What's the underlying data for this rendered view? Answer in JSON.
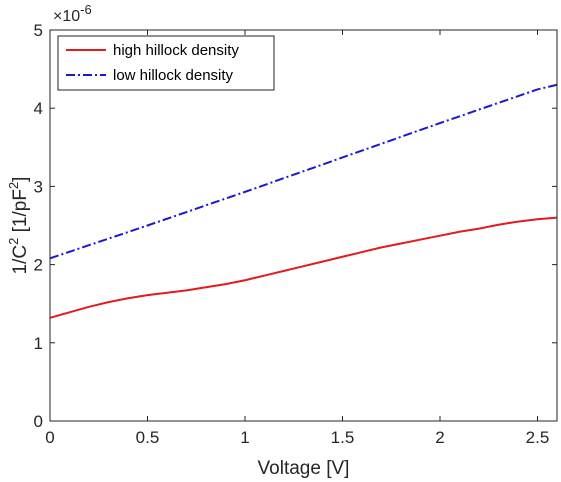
{
  "chart_data": {
    "type": "line",
    "xlabel": "Voltage [V]",
    "ylabel_parts": {
      "a": "1/C",
      "a_sup": "2",
      "b": " [1/pF",
      "b_sup": "2",
      "c": "]"
    },
    "y_multiplier": {
      "base": "×10",
      "exp": "-6"
    },
    "xlim": [
      0,
      2.6
    ],
    "ylim": [
      0,
      5
    ],
    "x_ticks": [
      0,
      0.5,
      1,
      1.5,
      2,
      2.5
    ],
    "x_tick_labels": [
      "0",
      "0.5",
      "1",
      "1.5",
      "2",
      "2.5"
    ],
    "y_ticks": [
      0,
      1,
      2,
      3,
      4,
      5
    ],
    "y_tick_labels": [
      "0",
      "1",
      "2",
      "3",
      "4",
      "5"
    ],
    "grid": false,
    "legend_position": "top-left",
    "series": [
      {
        "name": "high hillock density",
        "color": "#e41a1c",
        "style": "solid",
        "x": [
          0,
          0.1,
          0.2,
          0.3,
          0.4,
          0.5,
          0.6,
          0.7,
          0.8,
          0.9,
          1.0,
          1.1,
          1.2,
          1.3,
          1.4,
          1.5,
          1.6,
          1.7,
          1.8,
          1.9,
          2.0,
          2.1,
          2.2,
          2.3,
          2.4,
          2.5,
          2.6
        ],
        "y": [
          1.32,
          1.39,
          1.46,
          1.52,
          1.57,
          1.61,
          1.64,
          1.67,
          1.71,
          1.75,
          1.8,
          1.86,
          1.92,
          1.98,
          2.04,
          2.1,
          2.16,
          2.22,
          2.27,
          2.32,
          2.37,
          2.42,
          2.46,
          2.51,
          2.55,
          2.58,
          2.6
        ]
      },
      {
        "name": "low hillock density",
        "color": "#1a1acd",
        "style": "dashdot",
        "x": [
          0,
          0.5,
          1.0,
          1.5,
          2.0,
          2.5,
          2.6
        ],
        "y": [
          2.08,
          2.5,
          2.93,
          3.37,
          3.81,
          4.24,
          4.3
        ]
      }
    ]
  }
}
